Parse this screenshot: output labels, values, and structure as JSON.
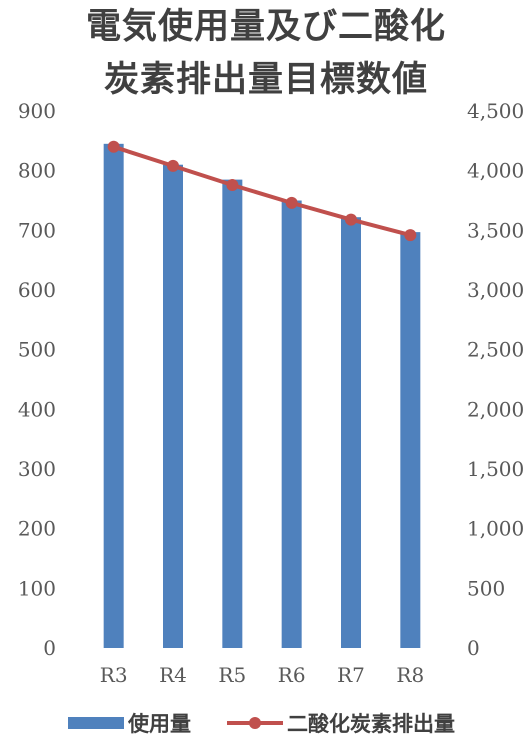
{
  "chart_data": {
    "type": "bar",
    "title_lines": [
      "電気使用量及び二酸化",
      "炭素排出量目標数値"
    ],
    "categories": [
      "R3",
      "R4",
      "R5",
      "R6",
      "R7",
      "R8"
    ],
    "series": [
      {
        "name": "使用量",
        "type": "bar",
        "axis": "left",
        "color": "#4f81bd",
        "values": [
          845,
          810,
          785,
          750,
          722,
          697
        ]
      },
      {
        "name": "二酸化炭素排出量",
        "type": "line",
        "axis": "right",
        "color": "#c0504d",
        "values": [
          4200,
          4040,
          3880,
          3730,
          3590,
          3460
        ]
      }
    ],
    "y_left": {
      "min": 0,
      "max": 900,
      "ticks": [
        0,
        100,
        200,
        300,
        400,
        500,
        600,
        700,
        800,
        900
      ],
      "tick_labels": [
        "0",
        "100",
        "200",
        "300",
        "400",
        "500",
        "600",
        "700",
        "800",
        "900"
      ]
    },
    "y_right": {
      "min": 0,
      "max": 4500,
      "ticks": [
        0,
        500,
        1000,
        1500,
        2000,
        2500,
        3000,
        3500,
        4000,
        4500
      ],
      "tick_labels": [
        "0",
        "500",
        "1,000",
        "1,500",
        "2,000",
        "2,500",
        "3,000",
        "3,500",
        "4,000",
        "4,500"
      ]
    },
    "grid": false,
    "legend_position": "bottom"
  }
}
